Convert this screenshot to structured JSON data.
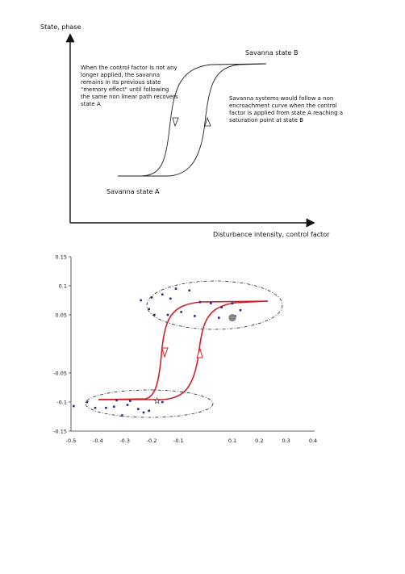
{
  "fig1": {
    "y_axis_label": "State, phase",
    "x_axis_label": "Disturbance intensity, control factor",
    "label_state_b": "Savanna state B",
    "label_state_a": "Savanna state A",
    "annotation_left": [
      "When the control factor is not any",
      "longer applied, the savanna",
      "remains in its previous state",
      "\"memory effect\" until following",
      "the same non linear path recovers",
      "state A"
    ],
    "annotation_right": [
      "Savanna systems would follow a non",
      "encroachment curve when the control",
      "factor is applied from state A reaching a",
      "saturation point at state B"
    ]
  },
  "chart_data": {
    "type": "scatter",
    "title": "",
    "xlabel": "",
    "ylabel": "",
    "xlim": [
      -0.5,
      0.4
    ],
    "ylim": [
      -0.15,
      0.15
    ],
    "x_ticks": [
      "-0.5",
      "-0.4",
      "-0.3",
      "-0.2",
      "-0.1",
      "0.1",
      "0.2",
      "0.3",
      "0.4"
    ],
    "y_ticks": [
      "0.15",
      "0.1",
      "0.05",
      "-0.05",
      "-0.1",
      "-0.15"
    ],
    "points_upper": [
      [
        -0.24,
        0.075
      ],
      [
        -0.21,
        0.06
      ],
      [
        -0.2,
        0.08
      ],
      [
        -0.16,
        0.085
      ],
      [
        -0.13,
        0.078
      ],
      [
        -0.11,
        0.095
      ],
      [
        -0.06,
        0.092
      ],
      [
        -0.02,
        0.072
      ],
      [
        0.02,
        0.07
      ],
      [
        0.06,
        0.063
      ],
      [
        0.1,
        0.07
      ],
      [
        0.13,
        0.058
      ],
      [
        -0.19,
        0.05
      ],
      [
        -0.14,
        0.05
      ],
      [
        -0.09,
        0.055
      ],
      [
        -0.04,
        0.048
      ],
      [
        0.05,
        0.045
      ],
      [
        0.11,
        0.048
      ]
    ],
    "points_lower": [
      [
        -0.49,
        -0.107
      ],
      [
        -0.44,
        -0.1
      ],
      [
        -0.41,
        -0.11
      ],
      [
        -0.37,
        -0.11
      ],
      [
        -0.34,
        -0.108
      ],
      [
        -0.31,
        -0.123
      ],
      [
        -0.29,
        -0.105
      ],
      [
        -0.28,
        -0.098
      ],
      [
        -0.25,
        -0.112
      ],
      [
        -0.23,
        -0.118
      ],
      [
        -0.21,
        -0.115
      ],
      [
        -0.16,
        -0.1
      ],
      [
        -0.33,
        -0.097
      ]
    ],
    "gray_marker": [
      0.1,
      0.045
    ],
    "star_marker": [
      -0.18,
      -0.098
    ],
    "colors": {
      "curve": "#d0202a",
      "points": "#1f2f8f",
      "gray_marker": "#888888"
    }
  }
}
